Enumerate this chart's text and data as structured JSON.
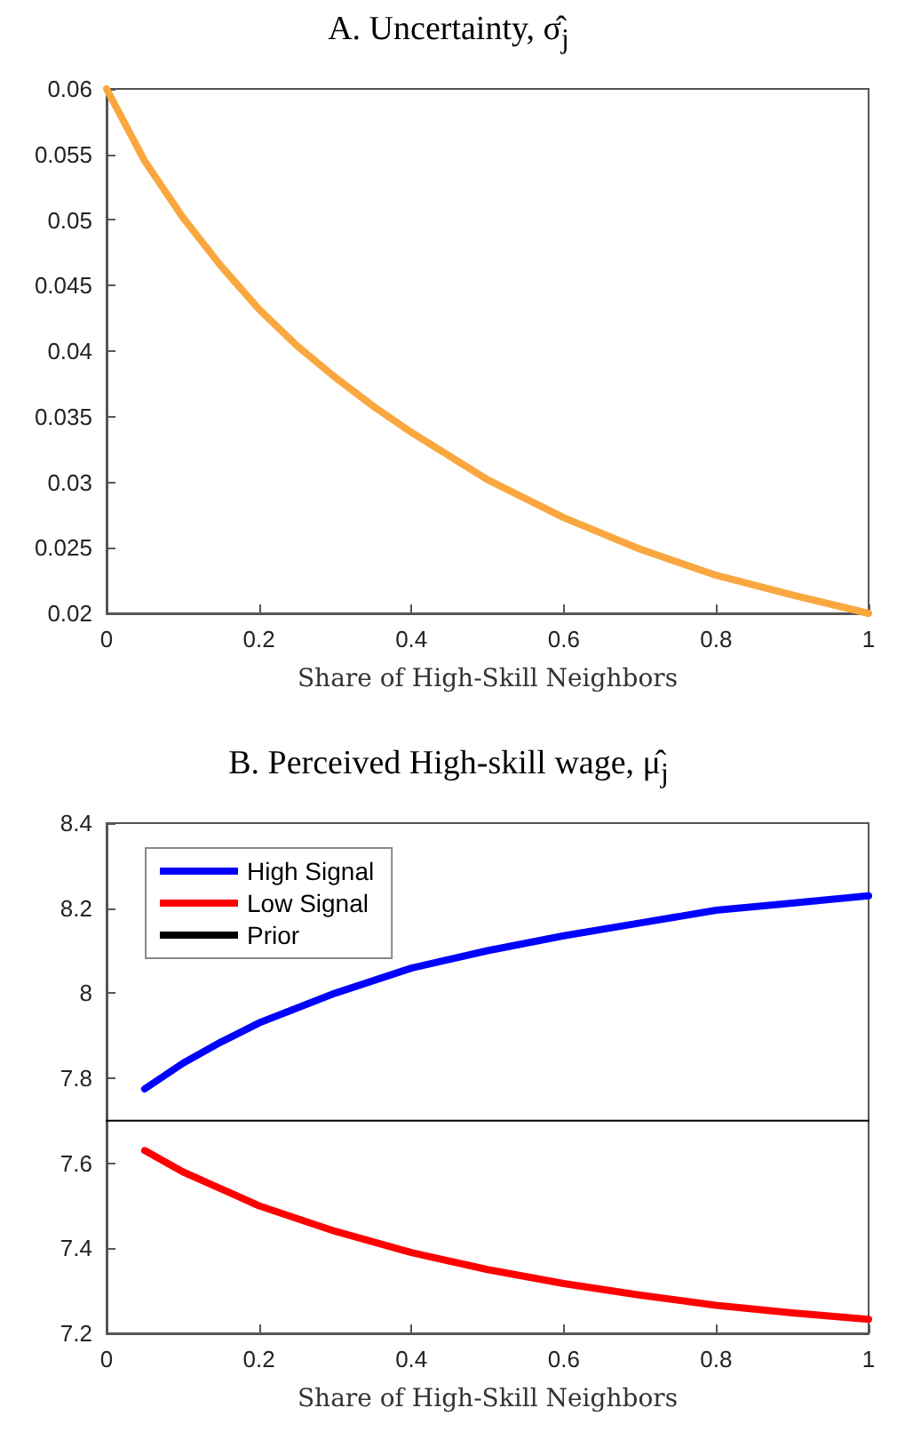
{
  "chart_data": [
    {
      "type": "line",
      "title": "A. Uncertainty, σ̂$_{j}$",
      "xlabel": "Share of High-Skill Neighbors",
      "xlim": [
        0,
        1
      ],
      "xticks": [
        0,
        0.2,
        0.4,
        0.6,
        0.8,
        1
      ],
      "ylim": [
        0.02,
        0.06
      ],
      "yticks": [
        0.02,
        0.025,
        0.03,
        0.035,
        0.04,
        0.045,
        0.05,
        0.055,
        0.06
      ],
      "grid": false,
      "legend": false,
      "marker": "none",
      "line_style": "solid",
      "series": [
        {
          "color": "#f9a73e",
          "x": [
            0,
            0.05,
            0.1,
            0.15,
            0.2,
            0.25,
            0.3,
            0.35,
            0.4,
            0.5,
            0.6,
            0.7,
            0.8,
            0.9,
            1
          ],
          "values": [
            0.06,
            0.0545,
            0.0502,
            0.0465,
            0.0432,
            0.0404,
            0.038,
            0.0358,
            0.0338,
            0.0302,
            0.0273,
            0.0249,
            0.0229,
            0.0214,
            0.02
          ]
        }
      ]
    },
    {
      "type": "line",
      "title": "B. Perceived High-skill wage, μ̂$_{j}$",
      "xlabel": "Share of High-Skill Neighbors",
      "xlim": [
        0,
        1
      ],
      "xticks": [
        0,
        0.2,
        0.4,
        0.6,
        0.8,
        1
      ],
      "ylim": [
        7.2,
        8.4
      ],
      "yticks": [
        7.2,
        7.4,
        7.6,
        7.8,
        8,
        8.2,
        8.4
      ],
      "grid": false,
      "legend": "top left",
      "marker": "none",
      "line_style": "solid",
      "series": [
        {
          "name": "High Signal",
          "color": "#0000ff",
          "x": [
            0.05,
            0.1,
            0.15,
            0.2,
            0.3,
            0.4,
            0.5,
            0.6,
            0.7,
            0.8,
            0.9,
            1
          ],
          "values": [
            7.775,
            7.835,
            7.885,
            7.93,
            8.0,
            8.059,
            8.1,
            8.135,
            8.165,
            8.195,
            8.212,
            8.229
          ]
        },
        {
          "name": "Low Signal",
          "color": "#ff0000",
          "x": [
            0.05,
            0.1,
            0.15,
            0.2,
            0.3,
            0.4,
            0.5,
            0.6,
            0.7,
            0.8,
            0.9,
            1
          ],
          "values": [
            7.63,
            7.58,
            7.54,
            7.5,
            7.44,
            7.39,
            7.35,
            7.317,
            7.29,
            7.266,
            7.248,
            7.233
          ]
        },
        {
          "name": "Prior",
          "color": "#000000",
          "x": [
            0,
            1
          ],
          "values": [
            7.7,
            7.7
          ]
        }
      ]
    }
  ]
}
